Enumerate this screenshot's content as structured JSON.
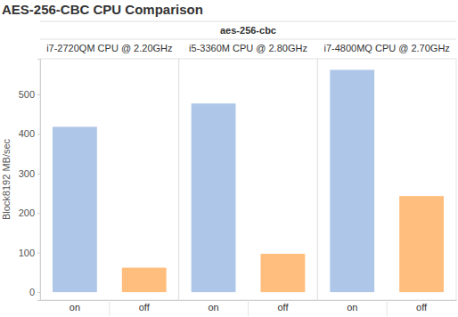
{
  "title": "AES-256-CBC CPU Comparison",
  "subtitle": "aes-256-cbc",
  "chart_data": [
    {
      "type": "bar",
      "title": "i7-2720QM CPU @ 2.20GHz",
      "y_label": "Block8192 MB/sec",
      "categories": [
        "on",
        "off"
      ],
      "values": [
        418,
        62
      ],
      "colors": [
        "#aec7e8",
        "#ffbe7d"
      ],
      "ylim": [
        -20,
        590
      ],
      "yticks": [
        0,
        100,
        200,
        300,
        400,
        500
      ],
      "grid": false
    },
    {
      "type": "bar",
      "title": "i5-3360M CPU @ 2.80GHz",
      "categories": [
        "on",
        "off"
      ],
      "values": [
        477,
        97
      ],
      "colors": [
        "#aec7e8",
        "#ffbe7d"
      ],
      "ylim": [
        -20,
        590
      ],
      "grid": false,
      "tick_labels": "x"
    },
    {
      "type": "bar",
      "title": "i7-4800MQ CPU @ 2.70GHz",
      "categories": [
        "on",
        "off"
      ],
      "values": [
        562,
        243
      ],
      "colors": [
        "#aec7e8",
        "#ffbe7d"
      ],
      "ylim": [
        -20,
        590
      ],
      "grid": false,
      "tick_labels": "x"
    }
  ]
}
